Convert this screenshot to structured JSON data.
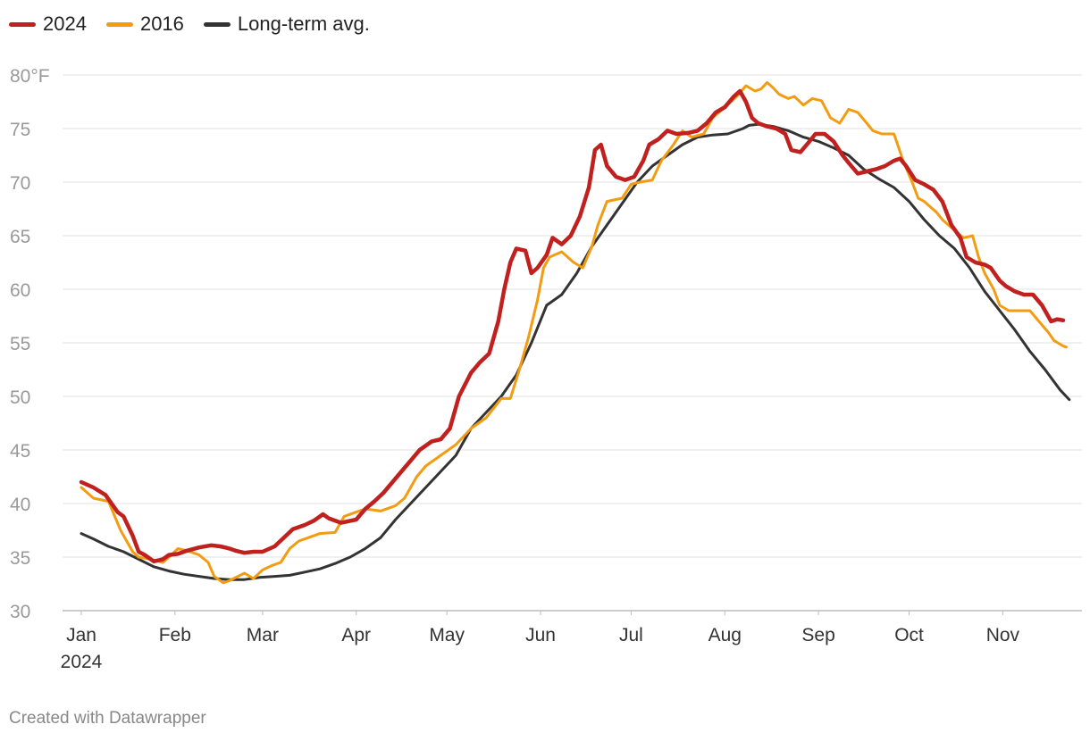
{
  "chart_data": {
    "type": "line",
    "y_unit_label": "80°F",
    "ylim": [
      30,
      80
    ],
    "y_ticks": [
      {
        "value": 30,
        "label": "30"
      },
      {
        "value": 35,
        "label": "35"
      },
      {
        "value": 40,
        "label": "40"
      },
      {
        "value": 45,
        "label": "45"
      },
      {
        "value": 50,
        "label": "50"
      },
      {
        "value": 55,
        "label": "55"
      },
      {
        "value": 60,
        "label": "60"
      },
      {
        "value": 65,
        "label": "65"
      },
      {
        "value": 70,
        "label": "70"
      },
      {
        "value": 75,
        "label": "75"
      }
    ],
    "x_domain": [
      1,
      326
    ],
    "x_unit": "day of year",
    "x_ticks": [
      {
        "day": 1,
        "label": "Jan",
        "sublabel": "2024"
      },
      {
        "day": 32,
        "label": "Feb"
      },
      {
        "day": 61,
        "label": "Mar"
      },
      {
        "day": 92,
        "label": "Apr"
      },
      {
        "day": 122,
        "label": "May"
      },
      {
        "day": 153,
        "label": "Jun"
      },
      {
        "day": 183,
        "label": "Jul"
      },
      {
        "day": 214,
        "label": "Aug"
      },
      {
        "day": 245,
        "label": "Sep"
      },
      {
        "day": 275,
        "label": "Oct"
      },
      {
        "day": 306,
        "label": "Nov"
      }
    ],
    "series": [
      {
        "name": "Long-term avg.",
        "color": "#333333",
        "points": [
          [
            1,
            37.2
          ],
          [
            5,
            36.7
          ],
          [
            10,
            36
          ],
          [
            15,
            35.5
          ],
          [
            20,
            34.8
          ],
          [
            25,
            34.1
          ],
          [
            30,
            33.7
          ],
          [
            35,
            33.4
          ],
          [
            40,
            33.2
          ],
          [
            45,
            33
          ],
          [
            50,
            32.9
          ],
          [
            55,
            32.9
          ],
          [
            60,
            33.1
          ],
          [
            65,
            33.2
          ],
          [
            70,
            33.3
          ],
          [
            75,
            33.6
          ],
          [
            80,
            33.9
          ],
          [
            85,
            34.4
          ],
          [
            90,
            35
          ],
          [
            95,
            35.8
          ],
          [
            100,
            36.8
          ],
          [
            105,
            38.5
          ],
          [
            110,
            40
          ],
          [
            115,
            41.5
          ],
          [
            120,
            43
          ],
          [
            125,
            44.5
          ],
          [
            130,
            47
          ],
          [
            135,
            48.5
          ],
          [
            140,
            50
          ],
          [
            145,
            52
          ],
          [
            150,
            55
          ],
          [
            155,
            58.5
          ],
          [
            160,
            59.5
          ],
          [
            165,
            61.5
          ],
          [
            170,
            64
          ],
          [
            175,
            66
          ],
          [
            180,
            68
          ],
          [
            185,
            70
          ],
          [
            190,
            71.5
          ],
          [
            195,
            72.5
          ],
          [
            200,
            73.5
          ],
          [
            205,
            74.2
          ],
          [
            210,
            74.4
          ],
          [
            215,
            74.5
          ],
          [
            220,
            75
          ],
          [
            222,
            75.3
          ],
          [
            225,
            75.4
          ],
          [
            230,
            75.2
          ],
          [
            235,
            74.8
          ],
          [
            240,
            74.2
          ],
          [
            245,
            73.8
          ],
          [
            250,
            73.2
          ],
          [
            255,
            72.5
          ],
          [
            260,
            71.2
          ],
          [
            265,
            70.3
          ],
          [
            270,
            69.5
          ],
          [
            275,
            68.2
          ],
          [
            280,
            66.5
          ],
          [
            285,
            65
          ],
          [
            290,
            63.8
          ],
          [
            295,
            62
          ],
          [
            300,
            59.8
          ],
          [
            305,
            58
          ],
          [
            310,
            56.2
          ],
          [
            315,
            54.2
          ],
          [
            320,
            52.5
          ],
          [
            325,
            50.6
          ],
          [
            328,
            49.7
          ]
        ]
      },
      {
        "name": "2016",
        "color": "#f39c12",
        "points": [
          [
            1,
            41.5
          ],
          [
            5,
            40.5
          ],
          [
            10,
            40.2
          ],
          [
            14,
            37.5
          ],
          [
            18,
            35.5
          ],
          [
            20,
            35
          ],
          [
            24,
            34.8
          ],
          [
            28,
            34.5
          ],
          [
            30,
            35
          ],
          [
            33,
            35.8
          ],
          [
            36,
            35.6
          ],
          [
            40,
            35.2
          ],
          [
            43,
            34.5
          ],
          [
            45,
            33.2
          ],
          [
            48,
            32.6
          ],
          [
            50,
            32.8
          ],
          [
            55,
            33.5
          ],
          [
            58,
            33
          ],
          [
            61,
            33.8
          ],
          [
            64,
            34.2
          ],
          [
            67,
            34.5
          ],
          [
            70,
            35.8
          ],
          [
            73,
            36.5
          ],
          [
            76,
            36.8
          ],
          [
            80,
            37.2
          ],
          [
            85,
            37.3
          ],
          [
            88,
            38.8
          ],
          [
            92,
            39.2
          ],
          [
            95,
            39.5
          ],
          [
            100,
            39.3
          ],
          [
            105,
            39.8
          ],
          [
            108,
            40.5
          ],
          [
            112,
            42.5
          ],
          [
            115,
            43.5
          ],
          [
            120,
            44.5
          ],
          [
            125,
            45.5
          ],
          [
            130,
            47
          ],
          [
            135,
            48
          ],
          [
            140,
            49.8
          ],
          [
            143,
            49.8
          ],
          [
            146,
            52.5
          ],
          [
            149,
            55.5
          ],
          [
            152,
            59
          ],
          [
            154,
            62
          ],
          [
            156,
            63
          ],
          [
            160,
            63.5
          ],
          [
            164,
            62.5
          ],
          [
            167,
            62
          ],
          [
            170,
            64
          ],
          [
            172,
            66
          ],
          [
            175,
            68.2
          ],
          [
            180,
            68.5
          ],
          [
            183,
            69.8
          ],
          [
            186,
            70
          ],
          [
            190,
            70.2
          ],
          [
            193,
            72
          ],
          [
            197,
            73.5
          ],
          [
            200,
            74.8
          ],
          [
            203,
            74.2
          ],
          [
            207,
            74.5
          ],
          [
            210,
            76
          ],
          [
            214,
            77
          ],
          [
            218,
            78
          ],
          [
            221,
            79
          ],
          [
            224,
            78.5
          ],
          [
            226,
            78.7
          ],
          [
            228,
            79.3
          ],
          [
            230,
            78.8
          ],
          [
            232,
            78.2
          ],
          [
            235,
            77.8
          ],
          [
            237,
            78
          ],
          [
            240,
            77.2
          ],
          [
            243,
            77.8
          ],
          [
            246,
            77.6
          ],
          [
            249,
            76
          ],
          [
            252,
            75.5
          ],
          [
            255,
            76.8
          ],
          [
            258,
            76.5
          ],
          [
            261,
            75.5
          ],
          [
            263,
            74.8
          ],
          [
            266,
            74.5
          ],
          [
            270,
            74.5
          ],
          [
            273,
            72
          ],
          [
            276,
            70
          ],
          [
            278,
            68.5
          ],
          [
            280,
            68.2
          ],
          [
            284,
            67.2
          ],
          [
            286,
            66.5
          ],
          [
            290,
            65.5
          ],
          [
            293,
            64.8
          ],
          [
            296,
            65
          ],
          [
            298,
            63
          ],
          [
            300,
            61.5
          ],
          [
            303,
            60
          ],
          [
            305,
            58.5
          ],
          [
            308,
            58
          ],
          [
            312,
            58
          ],
          [
            315,
            58
          ],
          [
            318,
            57
          ],
          [
            321,
            56
          ],
          [
            323,
            55.2
          ],
          [
            326,
            54.7
          ],
          [
            327,
            54.6
          ]
        ]
      },
      {
        "name": "2024",
        "color": "#c0211f",
        "points": [
          [
            1,
            42
          ],
          [
            5,
            41.5
          ],
          [
            9,
            40.8
          ],
          [
            13,
            39.2
          ],
          [
            15,
            38.8
          ],
          [
            18,
            37
          ],
          [
            20,
            35.5
          ],
          [
            22,
            35.2
          ],
          [
            25,
            34.6
          ],
          [
            28,
            34.8
          ],
          [
            30,
            35.2
          ],
          [
            33,
            35.3
          ],
          [
            36,
            35.6
          ],
          [
            40,
            35.9
          ],
          [
            44,
            36.1
          ],
          [
            47,
            36
          ],
          [
            50,
            35.8
          ],
          [
            52,
            35.6
          ],
          [
            55,
            35.4
          ],
          [
            58,
            35.5
          ],
          [
            61,
            35.5
          ],
          [
            65,
            36
          ],
          [
            68,
            36.8
          ],
          [
            71,
            37.6
          ],
          [
            75,
            38
          ],
          [
            78,
            38.4
          ],
          [
            81,
            39
          ],
          [
            83,
            38.6
          ],
          [
            87,
            38.2
          ],
          [
            92,
            38.5
          ],
          [
            95,
            39.5
          ],
          [
            98,
            40.2
          ],
          [
            101,
            41
          ],
          [
            104,
            42
          ],
          [
            107,
            43
          ],
          [
            110,
            44
          ],
          [
            113,
            45
          ],
          [
            117,
            45.8
          ],
          [
            120,
            46
          ],
          [
            123,
            47
          ],
          [
            126,
            50
          ],
          [
            130,
            52.2
          ],
          [
            133,
            53.2
          ],
          [
            136,
            54
          ],
          [
            139,
            57
          ],
          [
            141,
            60
          ],
          [
            143,
            62.5
          ],
          [
            145,
            63.8
          ],
          [
            148,
            63.6
          ],
          [
            150,
            61.5
          ],
          [
            152,
            62
          ],
          [
            155,
            63.2
          ],
          [
            157,
            64.8
          ],
          [
            160,
            64.2
          ],
          [
            163,
            65
          ],
          [
            166,
            66.8
          ],
          [
            169,
            69.5
          ],
          [
            171,
            73
          ],
          [
            173,
            73.5
          ],
          [
            175,
            71.5
          ],
          [
            178,
            70.5
          ],
          [
            181,
            70.2
          ],
          [
            184,
            70.5
          ],
          [
            187,
            72
          ],
          [
            189,
            73.5
          ],
          [
            192,
            74
          ],
          [
            195,
            74.8
          ],
          [
            198,
            74.5
          ],
          [
            202,
            74.6
          ],
          [
            205,
            74.8
          ],
          [
            208,
            75.5
          ],
          [
            211,
            76.5
          ],
          [
            214,
            77
          ],
          [
            217,
            78
          ],
          [
            219,
            78.5
          ],
          [
            221,
            77.5
          ],
          [
            223,
            76
          ],
          [
            225,
            75.5
          ],
          [
            228,
            75.2
          ],
          [
            231,
            75
          ],
          [
            234,
            74.5
          ],
          [
            236,
            73
          ],
          [
            239,
            72.8
          ],
          [
            242,
            73.8
          ],
          [
            244,
            74.5
          ],
          [
            247,
            74.5
          ],
          [
            250,
            73.8
          ],
          [
            253,
            72.5
          ],
          [
            255,
            71.8
          ],
          [
            258,
            70.8
          ],
          [
            261,
            71
          ],
          [
            264,
            71.2
          ],
          [
            267,
            71.5
          ],
          [
            270,
            72
          ],
          [
            272,
            72.2
          ],
          [
            274,
            71.5
          ],
          [
            277,
            70.2
          ],
          [
            280,
            69.8
          ],
          [
            283,
            69.3
          ],
          [
            286,
            68.2
          ],
          [
            289,
            66
          ],
          [
            292,
            64.8
          ],
          [
            294,
            63
          ],
          [
            297,
            62.5
          ],
          [
            300,
            62.3
          ],
          [
            302,
            62
          ],
          [
            305,
            60.8
          ],
          [
            307,
            60.3
          ],
          [
            310,
            59.8
          ],
          [
            313,
            59.5
          ],
          [
            316,
            59.5
          ],
          [
            319,
            58.5
          ],
          [
            322,
            57
          ],
          [
            324,
            57.2
          ],
          [
            326,
            57.1
          ]
        ]
      }
    ]
  },
  "legend": {
    "items": [
      {
        "label": "2024",
        "color": "#c0211f"
      },
      {
        "label": "2016",
        "color": "#f39c12"
      },
      {
        "label": "Long-term avg.",
        "color": "#333333"
      }
    ]
  },
  "footer": {
    "credit": "Created with Datawrapper"
  }
}
